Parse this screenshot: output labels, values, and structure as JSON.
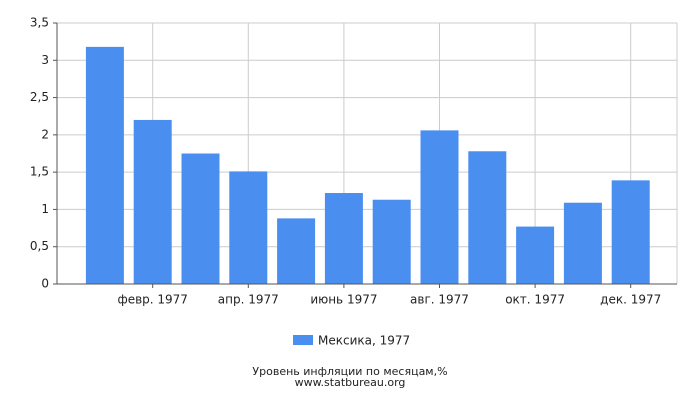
{
  "chart_data": {
    "type": "bar",
    "categories": [
      null,
      "февр. 1977",
      null,
      "апр. 1977",
      null,
      "июнь 1977",
      null,
      "авг. 1977",
      null,
      "окт. 1977",
      null,
      "дек. 1977"
    ],
    "series": [
      {
        "name": "Мексика, 1977",
        "color": "#4a8ef0",
        "values": [
          3.18,
          2.2,
          1.75,
          1.51,
          0.88,
          1.22,
          1.13,
          2.06,
          1.78,
          0.77,
          1.09,
          1.39
        ]
      }
    ],
    "ylim": [
      0,
      3.5
    ],
    "yticks": [
      0,
      {
        "value": 0.5,
        "label": "0,5"
      },
      1,
      {
        "value": 1.5,
        "label": "1,5"
      },
      2,
      {
        "value": 2.5,
        "label": "2,5"
      },
      3,
      {
        "value": 3.5,
        "label": "3,5"
      }
    ],
    "grid": true,
    "caption": "Уровень инфляции по месяцам,%",
    "source": "www.statbureau.org"
  }
}
